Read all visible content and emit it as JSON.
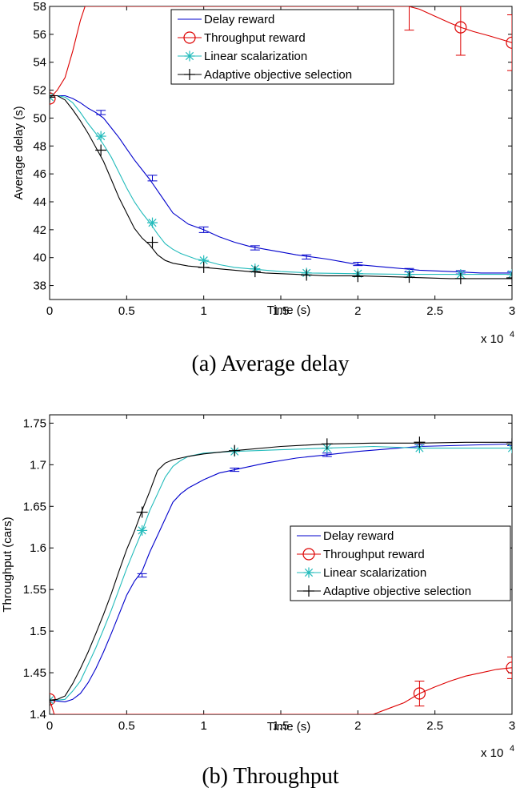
{
  "chart_data": [
    {
      "type": "line",
      "caption": "(a) Average delay",
      "xlabel": "Time (s)",
      "ylabel": "Average delay (s)",
      "x_multiplier": "x 10",
      "x_multiplier_exp": "4",
      "xlim": [
        0,
        3
      ],
      "ylim": [
        37,
        58
      ],
      "xticks": [
        "0",
        "0.5",
        "1",
        "1.5",
        "2",
        "2.5",
        "3"
      ],
      "yticks": [
        "38",
        "40",
        "42",
        "44",
        "46",
        "48",
        "50",
        "52",
        "54",
        "56",
        "58"
      ],
      "legend_position": "top-center",
      "series": [
        {
          "name": "Delay reward",
          "color": "#0000cc",
          "marker": "none",
          "x": [
            0,
            0.05,
            0.1,
            0.15,
            0.2,
            0.25,
            0.3,
            0.35,
            0.4,
            0.45,
            0.5,
            0.55,
            0.6,
            0.65,
            0.7,
            0.75,
            0.8,
            0.9,
            1.0,
            1.1,
            1.2,
            1.3,
            1.4,
            1.5,
            1.6,
            1.7,
            1.8,
            1.9,
            2.0,
            2.2,
            2.4,
            2.6,
            2.8,
            3.0
          ],
          "y": [
            51.6,
            51.6,
            51.6,
            51.4,
            51.1,
            50.7,
            50.4,
            50.0,
            49.3,
            48.6,
            47.8,
            47.0,
            46.3,
            45.6,
            44.8,
            44.0,
            43.2,
            42.4,
            42.0,
            41.5,
            41.1,
            40.8,
            40.6,
            40.4,
            40.2,
            40.05,
            39.9,
            39.7,
            39.5,
            39.3,
            39.1,
            39.0,
            38.9,
            38.9
          ],
          "errorbars": [
            {
              "x": 0.333,
              "y": 50.4,
              "err": 0.15
            },
            {
              "x": 0.667,
              "y": 45.7,
              "err": 0.2
            },
            {
              "x": 1.0,
              "y": 42.0,
              "err": 0.2
            },
            {
              "x": 1.333,
              "y": 40.7,
              "err": 0.15
            },
            {
              "x": 1.667,
              "y": 40.05,
              "err": 0.15
            },
            {
              "x": 2.0,
              "y": 39.55,
              "err": 0.12
            },
            {
              "x": 2.333,
              "y": 39.1,
              "err": 0.12
            },
            {
              "x": 2.667,
              "y": 38.95,
              "err": 0.12
            },
            {
              "x": 3.0,
              "y": 38.9,
              "err": 0.1
            }
          ]
        },
        {
          "name": "Throughput reward",
          "color": "#dd0000",
          "marker": "circle",
          "x": [
            0,
            0.05,
            0.1,
            0.15,
            0.2,
            0.23,
            2.33,
            2.4,
            2.5,
            2.6,
            2.667,
            2.75,
            2.85,
            3.0
          ],
          "y": [
            51.4,
            52.0,
            52.9,
            54.8,
            57.0,
            58.0,
            58.0,
            57.8,
            57.3,
            56.8,
            56.5,
            56.2,
            55.9,
            55.4
          ],
          "markers": [
            {
              "x": 0,
              "y": 51.4
            },
            {
              "x": 2.667,
              "y": 56.5
            },
            {
              "x": 3.0,
              "y": 55.4
            }
          ],
          "errorbars": [
            {
              "x": 2.333,
              "y": 58.0,
              "err": 1.7
            },
            {
              "x": 2.667,
              "y": 56.5,
              "err": 2.0
            },
            {
              "x": 3.0,
              "y": 55.4,
              "err": 2.0
            }
          ]
        },
        {
          "name": "Linear scalarization",
          "color": "#22bbbb",
          "marker": "asterisk",
          "x": [
            0,
            0.05,
            0.1,
            0.15,
            0.2,
            0.25,
            0.3,
            0.35,
            0.4,
            0.45,
            0.5,
            0.55,
            0.6,
            0.65,
            0.7,
            0.75,
            0.8,
            0.85,
            0.9,
            0.95,
            1.0,
            1.1,
            1.2,
            1.3,
            1.5,
            1.7,
            2.0,
            2.3,
            2.6,
            3.0
          ],
          "y": [
            51.6,
            51.6,
            51.5,
            51.1,
            50.4,
            49.6,
            48.9,
            48.1,
            47.2,
            46.1,
            45.0,
            44.0,
            43.2,
            42.5,
            41.7,
            41.0,
            40.6,
            40.3,
            40.1,
            39.9,
            39.8,
            39.5,
            39.3,
            39.2,
            39.0,
            38.9,
            38.85,
            38.8,
            38.8,
            38.8
          ],
          "markers": [
            {
              "x": 0,
              "y": 51.5
            },
            {
              "x": 0.333,
              "y": 48.7
            },
            {
              "x": 0.667,
              "y": 42.5
            },
            {
              "x": 1.0,
              "y": 39.8
            },
            {
              "x": 1.333,
              "y": 39.2
            },
            {
              "x": 1.667,
              "y": 38.9
            },
            {
              "x": 2.0,
              "y": 38.85
            },
            {
              "x": 2.333,
              "y": 38.8
            },
            {
              "x": 2.667,
              "y": 38.8
            },
            {
              "x": 3.0,
              "y": 38.8
            }
          ]
        },
        {
          "name": "Adaptive objective selection",
          "color": "#000000",
          "marker": "plus",
          "x": [
            0,
            0.05,
            0.1,
            0.15,
            0.2,
            0.25,
            0.3,
            0.35,
            0.4,
            0.45,
            0.5,
            0.55,
            0.6,
            0.65,
            0.7,
            0.75,
            0.8,
            0.85,
            0.9,
            1.0,
            1.2,
            1.4,
            1.6,
            1.8,
            2.0,
            2.3,
            2.6,
            3.0
          ],
          "y": [
            51.6,
            51.6,
            51.3,
            50.6,
            49.8,
            48.9,
            47.9,
            46.9,
            45.6,
            44.3,
            43.2,
            42.1,
            41.4,
            40.9,
            40.2,
            39.8,
            39.6,
            39.5,
            39.4,
            39.3,
            39.1,
            38.9,
            38.8,
            38.7,
            38.7,
            38.6,
            38.5,
            38.5
          ],
          "markers": [
            {
              "x": 0,
              "y": 51.5
            },
            {
              "x": 0.333,
              "y": 47.7
            },
            {
              "x": 0.667,
              "y": 41.1
            },
            {
              "x": 1.0,
              "y": 39.3
            },
            {
              "x": 1.333,
              "y": 39.0
            },
            {
              "x": 1.667,
              "y": 38.75
            },
            {
              "x": 2.0,
              "y": 38.65
            },
            {
              "x": 2.333,
              "y": 38.6
            },
            {
              "x": 2.667,
              "y": 38.5
            },
            {
              "x": 3.0,
              "y": 38.55
            }
          ]
        }
      ]
    },
    {
      "type": "line",
      "caption": "(b) Throughput",
      "xlabel": "Time (s)",
      "ylabel": "Throughput (cars)",
      "x_multiplier": "x 10",
      "x_multiplier_exp": "4",
      "xlim": [
        0,
        3
      ],
      "ylim": [
        1.4,
        1.76
      ],
      "xticks": [
        "0",
        "0.5",
        "1",
        "1.5",
        "2",
        "2.5",
        "3"
      ],
      "yticks": [
        "1.4",
        "1.45",
        "1.5",
        "1.55",
        "1.6",
        "1.65",
        "1.7",
        "1.75"
      ],
      "legend_position": "center-right",
      "series": [
        {
          "name": "Delay reward",
          "color": "#0000cc",
          "marker": "none",
          "x": [
            0,
            0.05,
            0.1,
            0.15,
            0.2,
            0.25,
            0.3,
            0.35,
            0.4,
            0.45,
            0.5,
            0.55,
            0.6,
            0.65,
            0.7,
            0.75,
            0.8,
            0.85,
            0.9,
            1.0,
            1.1,
            1.2,
            1.4,
            1.6,
            1.8,
            2.0,
            2.4,
            3.0
          ],
          "y": [
            1.417,
            1.416,
            1.415,
            1.418,
            1.425,
            1.438,
            1.455,
            1.475,
            1.497,
            1.52,
            1.543,
            1.56,
            1.572,
            1.595,
            1.615,
            1.635,
            1.655,
            1.665,
            1.672,
            1.682,
            1.69,
            1.694,
            1.702,
            1.708,
            1.712,
            1.716,
            1.722,
            1.725
          ],
          "errorbars": [
            {
              "x": 0.6,
              "y": 1.567,
              "err": 0.002
            },
            {
              "x": 1.2,
              "y": 1.694,
              "err": 0.002
            },
            {
              "x": 1.8,
              "y": 1.712,
              "err": 0.002
            },
            {
              "x": 2.4,
              "y": 1.722,
              "err": 0.002
            },
            {
              "x": 3.0,
              "y": 1.725,
              "err": 0.002
            }
          ]
        },
        {
          "name": "Throughput reward",
          "color": "#dd0000",
          "marker": "circle",
          "x": [
            0,
            0.03,
            2.1,
            2.2,
            2.3,
            2.4,
            2.5,
            2.6,
            2.7,
            2.8,
            2.9,
            3.0
          ],
          "y": [
            1.418,
            1.4,
            1.4,
            1.407,
            1.414,
            1.425,
            1.433,
            1.44,
            1.446,
            1.45,
            1.454,
            1.456
          ],
          "markers": [
            {
              "x": 0,
              "y": 1.418
            },
            {
              "x": 2.4,
              "y": 1.425
            },
            {
              "x": 3.0,
              "y": 1.456
            }
          ],
          "errorbars": [
            {
              "x": 2.4,
              "y": 1.425,
              "err": 0.015
            },
            {
              "x": 3.0,
              "y": 1.456,
              "err": 0.013
            }
          ]
        },
        {
          "name": "Linear scalarization",
          "color": "#22bbbb",
          "marker": "asterisk",
          "x": [
            0,
            0.05,
            0.1,
            0.15,
            0.2,
            0.25,
            0.3,
            0.35,
            0.4,
            0.45,
            0.5,
            0.55,
            0.6,
            0.65,
            0.7,
            0.75,
            0.8,
            0.85,
            0.9,
            1.0,
            1.2,
            1.5,
            1.8,
            2.1,
            2.4,
            2.7,
            3.0
          ],
          "y": [
            1.417,
            1.417,
            1.418,
            1.428,
            1.44,
            1.46,
            1.48,
            1.502,
            1.525,
            1.55,
            1.575,
            1.598,
            1.62,
            1.645,
            1.665,
            1.685,
            1.698,
            1.705,
            1.71,
            1.714,
            1.716,
            1.718,
            1.72,
            1.722,
            1.72,
            1.72,
            1.72
          ],
          "markers": [
            {
              "x": 0,
              "y": 1.417
            },
            {
              "x": 0.6,
              "y": 1.621
            },
            {
              "x": 1.2,
              "y": 1.716
            },
            {
              "x": 1.8,
              "y": 1.72
            },
            {
              "x": 2.4,
              "y": 1.72
            },
            {
              "x": 3.0,
              "y": 1.72
            }
          ]
        },
        {
          "name": "Adaptive objective selection",
          "color": "#000000",
          "marker": "plus",
          "x": [
            0,
            0.05,
            0.1,
            0.15,
            0.2,
            0.25,
            0.3,
            0.35,
            0.4,
            0.45,
            0.5,
            0.55,
            0.6,
            0.65,
            0.7,
            0.75,
            0.8,
            0.9,
            1.0,
            1.2,
            1.5,
            1.8,
            2.1,
            2.4,
            2.7,
            3.0
          ],
          "y": [
            1.417,
            1.418,
            1.422,
            1.437,
            1.455,
            1.475,
            1.497,
            1.52,
            1.545,
            1.572,
            1.598,
            1.62,
            1.645,
            1.668,
            1.693,
            1.702,
            1.706,
            1.71,
            1.713,
            1.717,
            1.722,
            1.725,
            1.726,
            1.726,
            1.727,
            1.727
          ],
          "markers": [
            {
              "x": 0,
              "y": 1.417
            },
            {
              "x": 0.6,
              "y": 1.643
            },
            {
              "x": 1.2,
              "y": 1.717
            },
            {
              "x": 1.8,
              "y": 1.725
            },
            {
              "x": 2.4,
              "y": 1.727
            },
            {
              "x": 3.0,
              "y": 1.725
            }
          ]
        }
      ]
    }
  ]
}
